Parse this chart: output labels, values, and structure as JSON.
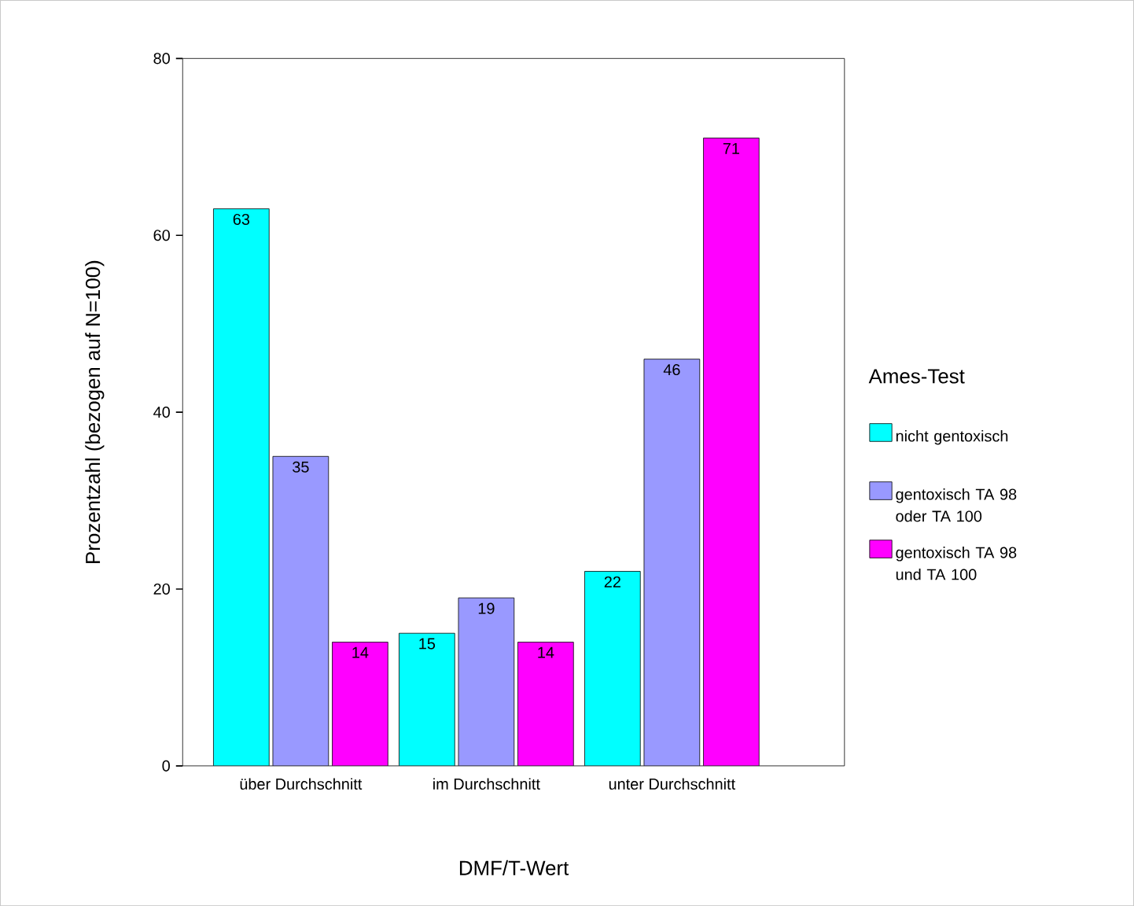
{
  "chart_data": {
    "type": "bar",
    "xlabel": "DMF/T-Wert",
    "ylabel": "Prozentzahl (bezogen auf N=100)",
    "legend_title": "Ames-Test",
    "categories": [
      "über Durchschnitt",
      "im Durchschnitt",
      "unter Durchschnitt"
    ],
    "series": [
      {
        "name": "nicht gentoxisch",
        "color": "#00ffff",
        "values": [
          63,
          15,
          22
        ]
      },
      {
        "name": "gentoxisch TA 98 oder TA 100",
        "color": "#9999ff",
        "values": [
          35,
          19,
          46
        ]
      },
      {
        "name": "gentoxisch TA 98 und TA 100",
        "color": "#ff00ff",
        "values": [
          14,
          14,
          71
        ]
      }
    ],
    "ylim": [
      0,
      80
    ],
    "yticks": [
      0,
      20,
      40,
      60,
      80
    ],
    "data_labels": true,
    "legend": "right",
    "grid": false
  }
}
